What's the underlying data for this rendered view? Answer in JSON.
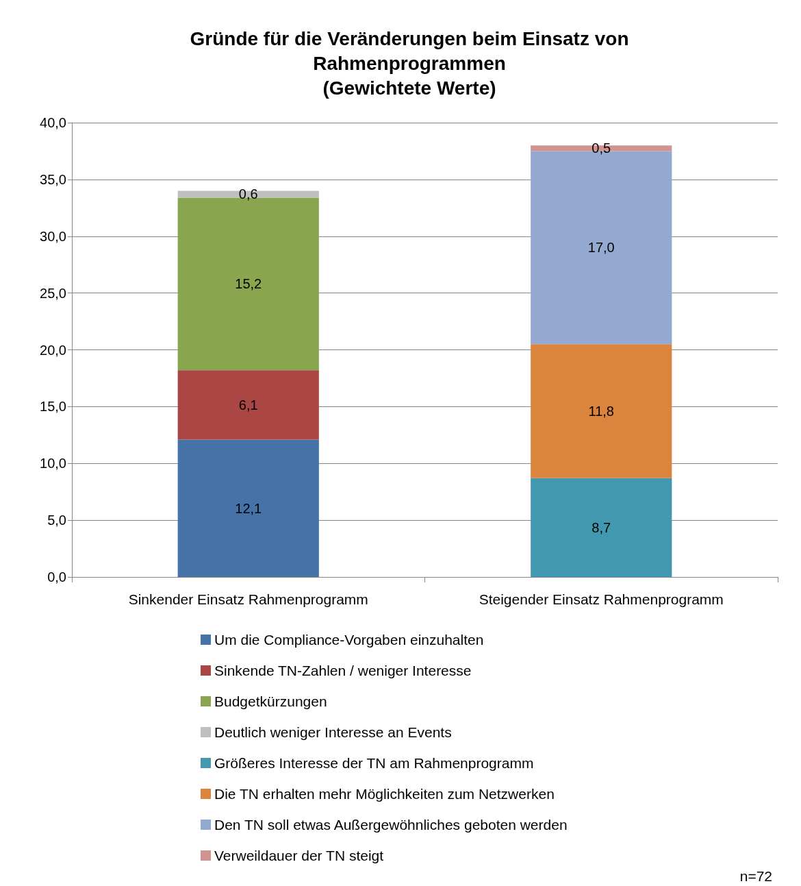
{
  "chart_data": {
    "type": "bar",
    "stacked": true,
    "title": "Gründe für die Veränderungen beim Einsatz von\nRahmenprogrammen\n(Gewichtete Werte)",
    "categories": [
      "Sinkender Einsatz Rahmenprogramm",
      "Steigender Einsatz Rahmenprogramm"
    ],
    "series": [
      {
        "name": "Um die Compliance-Vorgaben einzuhalten",
        "color": "#4572a7",
        "values": [
          12.1,
          null
        ],
        "value_labels": [
          "12,1",
          null
        ]
      },
      {
        "name": "Sinkende TN-Zahlen / weniger Interesse",
        "color": "#aa4643",
        "values": [
          6.1,
          null
        ],
        "value_labels": [
          "6,1",
          null
        ]
      },
      {
        "name": "Budgetkürzungen",
        "color": "#89a54e",
        "values": [
          15.2,
          null
        ],
        "value_labels": [
          "15,2",
          null
        ]
      },
      {
        "name": "Deutlich weniger Interesse an Events",
        "color": "#bfbfbf",
        "values": [
          0.6,
          null
        ],
        "value_labels": [
          "0,6",
          null
        ]
      },
      {
        "name": "Größeres Interesse der TN am Rahmenprogramm",
        "color": "#4198af",
        "values": [
          null,
          8.7
        ],
        "value_labels": [
          null,
          "8,7"
        ]
      },
      {
        "name": "Die TN erhalten mehr Möglichkeiten zum Netzwerken",
        "color": "#db843d",
        "values": [
          null,
          11.8
        ],
        "value_labels": [
          null,
          "11,8"
        ]
      },
      {
        "name": "Den TN soll etwas Außergewöhnliches geboten werden",
        "color": "#93a9cf",
        "values": [
          null,
          17.0
        ],
        "value_labels": [
          null,
          "17,0"
        ]
      },
      {
        "name": "Verweildauer der TN steigt",
        "color": "#d19392",
        "values": [
          null,
          0.5
        ],
        "value_labels": [
          null,
          "0,5"
        ]
      }
    ],
    "ylim": [
      0,
      40
    ],
    "yticks": [
      {
        "value": 0,
        "label": "0,0"
      },
      {
        "value": 5,
        "label": "5,0"
      },
      {
        "value": 10,
        "label": "10,0"
      },
      {
        "value": 15,
        "label": "15,0"
      },
      {
        "value": 20,
        "label": "20,0"
      },
      {
        "value": 25,
        "label": "25,0"
      },
      {
        "value": 30,
        "label": "30,0"
      },
      {
        "value": 35,
        "label": "35,0"
      },
      {
        "value": 40,
        "label": "40,0"
      }
    ],
    "grid": "y",
    "legend": "bottom",
    "annotations": [
      "n=72"
    ]
  }
}
